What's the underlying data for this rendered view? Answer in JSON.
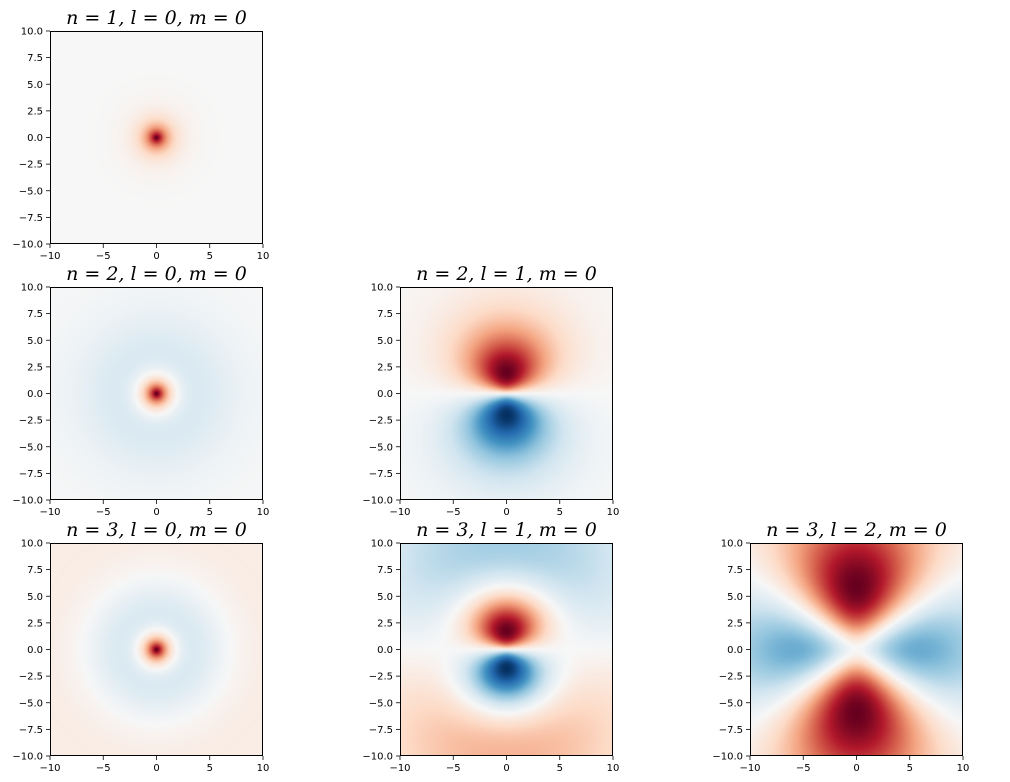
{
  "chart_data": [
    {
      "type": "heatmap",
      "title": "n = 1, l = 0, m = 0",
      "n": 1,
      "l": 0,
      "m": 0,
      "xlim": [
        -10,
        10
      ],
      "ylim": [
        -10,
        10
      ],
      "xticks": [
        "−10",
        "−5",
        "0",
        "5",
        "10"
      ],
      "yticks": [
        "10.0",
        "7.5",
        "5.0",
        "2.5",
        "0.0",
        "−2.5",
        "−5.0",
        "−7.5",
        "−10.0"
      ],
      "colormap": "RdBu_r"
    },
    {
      "type": "heatmap",
      "title": "n = 2, l = 0, m = 0",
      "n": 2,
      "l": 0,
      "m": 0,
      "xlim": [
        -10,
        10
      ],
      "ylim": [
        -10,
        10
      ],
      "xticks": [
        "−10",
        "−5",
        "0",
        "5",
        "10"
      ],
      "yticks": [
        "10.0",
        "7.5",
        "5.0",
        "2.5",
        "0.0",
        "−2.5",
        "−5.0",
        "−7.5",
        "−10.0"
      ],
      "colormap": "RdBu_r"
    },
    {
      "type": "heatmap",
      "title": "n = 2, l = 1, m = 0",
      "n": 2,
      "l": 1,
      "m": 0,
      "xlim": [
        -10,
        10
      ],
      "ylim": [
        -10,
        10
      ],
      "xticks": [
        "−10",
        "−5",
        "0",
        "5",
        "10"
      ],
      "yticks": [
        "10.0",
        "7.5",
        "5.0",
        "2.5",
        "0.0",
        "−2.5",
        "−5.0",
        "−7.5",
        "−10.0"
      ],
      "colormap": "RdBu_r"
    },
    {
      "type": "heatmap",
      "title": "n = 3, l = 0, m = 0",
      "n": 3,
      "l": 0,
      "m": 0,
      "xlim": [
        -10,
        10
      ],
      "ylim": [
        -10,
        10
      ],
      "xticks": [
        "−10",
        "−5",
        "0",
        "5",
        "10"
      ],
      "yticks": [
        "10.0",
        "7.5",
        "5.0",
        "2.5",
        "0.0",
        "−2.5",
        "−5.0",
        "−7.5",
        "−10.0"
      ],
      "colormap": "RdBu_r"
    },
    {
      "type": "heatmap",
      "title": "n = 3, l = 1, m = 0",
      "n": 3,
      "l": 1,
      "m": 0,
      "xlim": [
        -10,
        10
      ],
      "ylim": [
        -10,
        10
      ],
      "xticks": [
        "−10",
        "−5",
        "0",
        "5",
        "10"
      ],
      "yticks": [
        "10.0",
        "7.5",
        "5.0",
        "2.5",
        "0.0",
        "−2.5",
        "−5.0",
        "−7.5",
        "−10.0"
      ],
      "colormap": "RdBu_r"
    },
    {
      "type": "heatmap",
      "title": "n = 3, l = 2, m = 0",
      "n": 3,
      "l": 2,
      "m": 0,
      "xlim": [
        -10,
        10
      ],
      "ylim": [
        -10,
        10
      ],
      "xticks": [
        "−10",
        "−5",
        "0",
        "5",
        "10"
      ],
      "yticks": [
        "10.0",
        "7.5",
        "5.0",
        "2.5",
        "0.0",
        "−2.5",
        "−5.0",
        "−7.5",
        "−10.0"
      ],
      "colormap": "RdBu_r"
    }
  ]
}
